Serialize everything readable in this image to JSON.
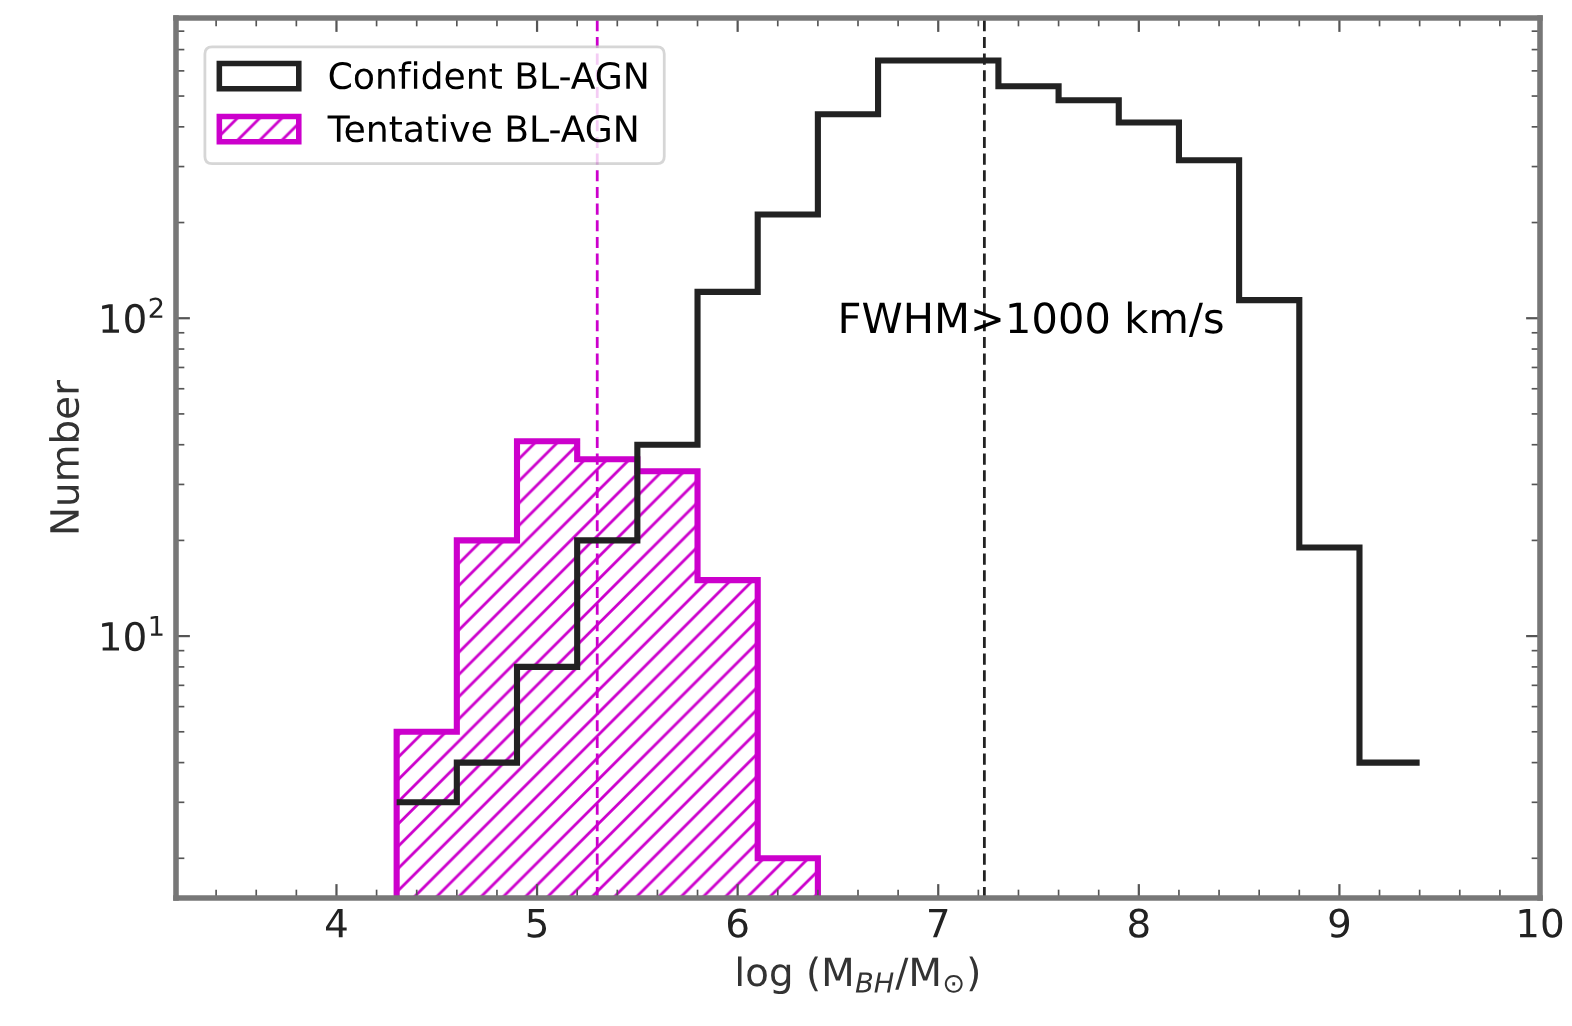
{
  "chart_data": {
    "type": "histogram",
    "xlabel": "log (M$_{BH}$/M$_{⊙}$)",
    "ylabel": "Number",
    "bins": [
      4.3,
      4.6,
      4.9,
      5.2,
      5.5,
      5.8,
      6.1,
      6.4,
      6.7,
      7.0,
      7.3,
      7.6,
      7.9,
      8.2,
      8.5,
      8.8,
      9.1,
      9.4
    ],
    "series": [
      {
        "name": "Confident BL-AGN",
        "color": "#222222",
        "values": [
          3,
          4,
          8,
          20,
          40,
          121,
          212,
          438,
          647,
          647,
          537,
          485,
          413,
          314,
          114,
          19,
          4
        ]
      },
      {
        "name": "Tentative BL-AGN",
        "color": "#cc00cc",
        "bins": [
          4.3,
          4.6,
          4.9,
          5.2,
          5.5,
          5.8,
          6.1,
          6.4
        ],
        "values": [
          5,
          20,
          41,
          36,
          33,
          15,
          2
        ]
      }
    ],
    "ref_lines": [
      {
        "axis": "x",
        "value": 5.3,
        "color": "#cc00cc",
        "line_style": "dashed"
      },
      {
        "axis": "x",
        "value": 7.23,
        "color": "#222222",
        "line_style": "dashed"
      }
    ],
    "annotations": [
      "FWHM>1000 km/s"
    ],
    "log": "y",
    "xlim": [
      3.2,
      10
    ],
    "xticks": [
      4,
      5,
      6,
      7,
      8,
      9,
      10
    ],
    "ylim": [
      1.5,
      880
    ],
    "yticks": [
      {
        "value": 10,
        "label": "10$^{1}$"
      },
      {
        "value": 100,
        "label": "10$^{2}$"
      }
    ],
    "legend": "top left",
    "grid": false
  }
}
